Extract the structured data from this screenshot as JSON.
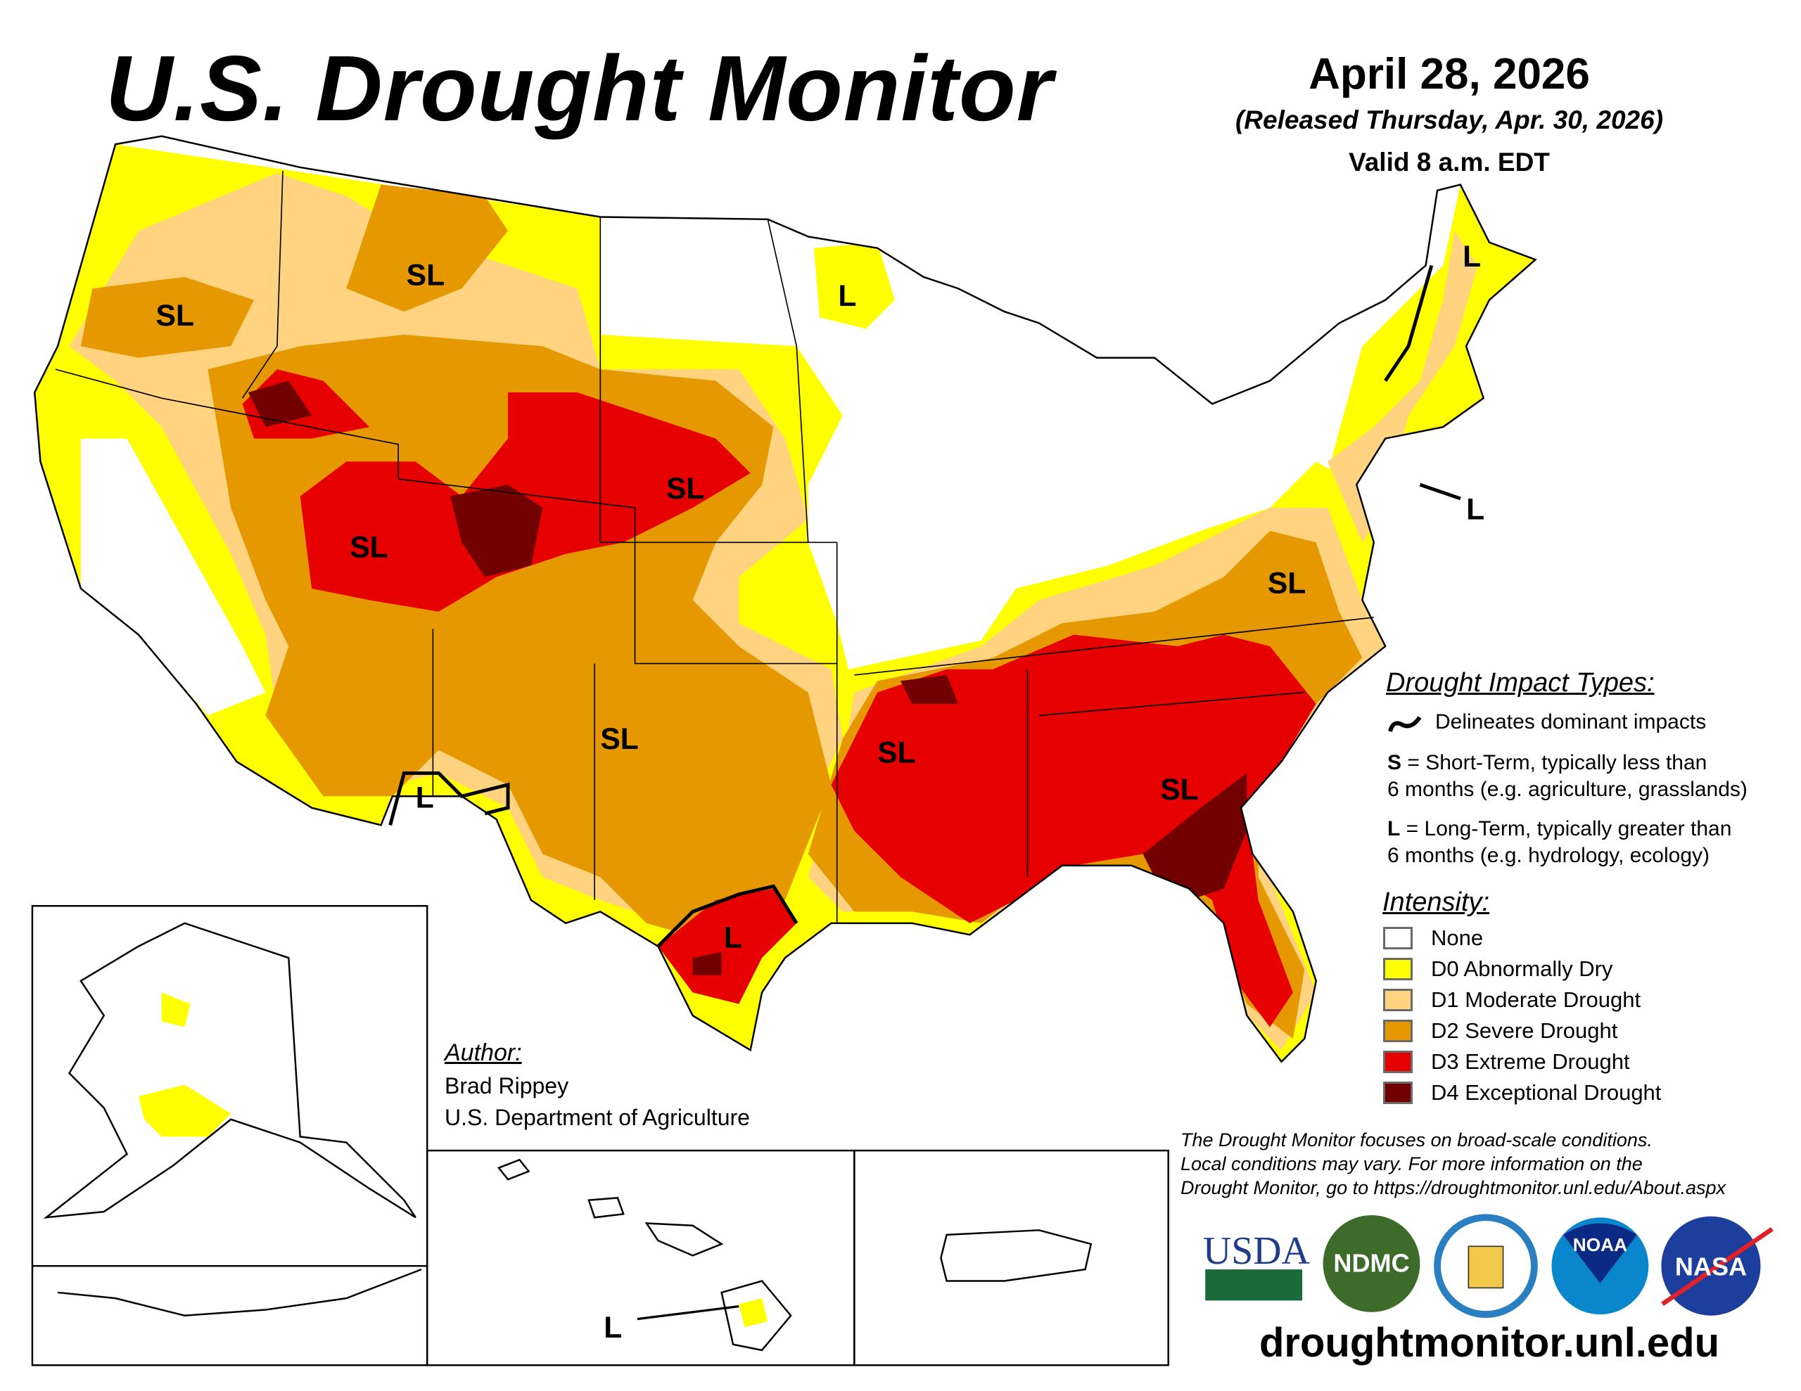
{
  "header": {
    "title": "U.S. Drought Monitor",
    "date": "April 28, 2026",
    "released": "(Released Thursday, Apr. 30, 2026)",
    "valid": "Valid 8 a.m. EDT"
  },
  "map": {
    "impact_labels": {
      "sl": "SL",
      "l": "L"
    }
  },
  "legend": {
    "impact_title": "Drought Impact Types:",
    "delineates": "Delineates dominant impacts",
    "s_key": "S",
    "s_text": " = Short-Term, typically less than",
    "s_text2": "6 months (e.g. agriculture, grasslands)",
    "l_key": "L",
    "l_text": " = Long-Term, typically greater than",
    "l_text2": "6 months (e.g. hydrology, ecology)",
    "intensity_title": "Intensity:",
    "intensity": [
      {
        "label": "None",
        "color": "#FFFFFF"
      },
      {
        "label": "D0 Abnormally Dry",
        "color": "#FFFF00"
      },
      {
        "label": "D1 Moderate Drought",
        "color": "#FFD37F"
      },
      {
        "label": "D2 Severe Drought",
        "color": "#E69800"
      },
      {
        "label": "D3 Extreme Drought",
        "color": "#E60000"
      },
      {
        "label": "D4 Exceptional Drought",
        "color": "#730000"
      }
    ]
  },
  "author": {
    "title": "Author:",
    "name": "Brad Rippey",
    "org": "U.S. Department of Agriculture"
  },
  "footnote": {
    "line1": "The Drought Monitor focuses on broad-scale conditions.",
    "line2": "Local conditions may vary. For more information on the",
    "line3": "Drought Monitor, go to https://droughtmonitor.unl.edu/About.aspx"
  },
  "logos": {
    "usda": "USDA",
    "ndmc": "NDMC",
    "noaa": "NOAA",
    "nasa": "NASA",
    "commerce": "Department of Commerce"
  },
  "url": "droughtmonitor.unl.edu"
}
